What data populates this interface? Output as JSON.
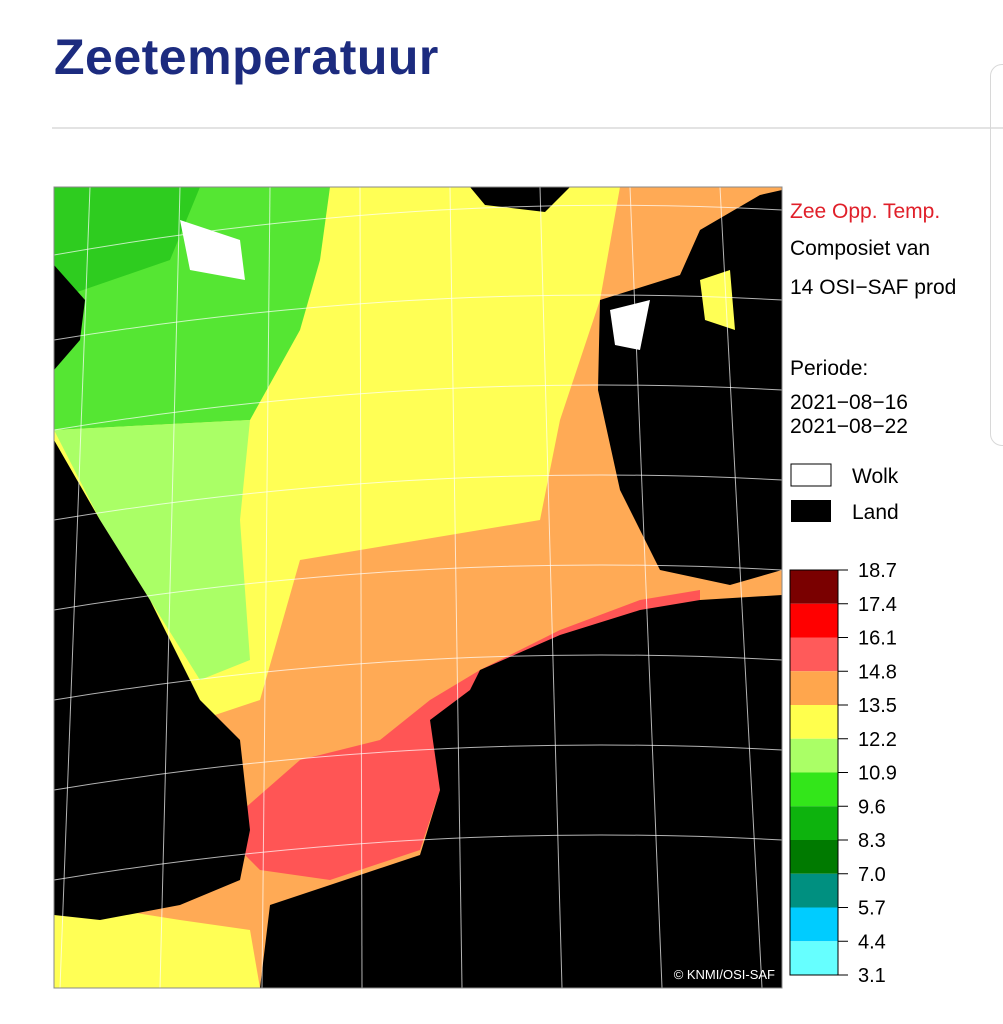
{
  "header": {
    "title": "Zeetemperatuur"
  },
  "map": {
    "legend_title": "Zee Opp. Temp.",
    "description": [
      "Composiet van",
      "14 OSI−SAF prod"
    ],
    "period_label": "Periode:",
    "period": [
      "2021−08−16",
      "2021−08−22"
    ],
    "keys": [
      "Wolk",
      "Land"
    ],
    "scale": [
      "18.7",
      "17.4",
      "16.1",
      "14.8",
      "13.5",
      "12.2",
      "10.9",
      "9.6",
      "8.3",
      "7.0",
      "5.7",
      "4.4",
      "3.1"
    ],
    "credit": "© KNMI/OSI-SAF"
  }
}
